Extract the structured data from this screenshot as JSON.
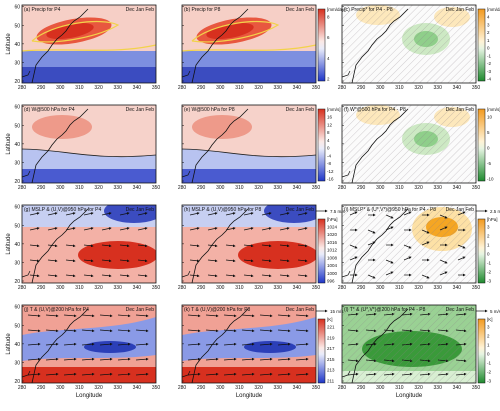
{
  "figure": {
    "season": "Dec Jan Feb",
    "xlabel": "Longitude",
    "ylabel": "Latitude",
    "lon_ticks": [
      "280",
      "290",
      "300",
      "310",
      "320",
      "330",
      "340",
      "350"
    ],
    "lat_ticks": [
      "20",
      "30",
      "40",
      "50",
      "60"
    ],
    "panels": [
      {
        "id": "a",
        "title": "(a) Precip for P4",
        "type": "precip"
      },
      {
        "id": "b",
        "title": "(b) Precip for P8",
        "type": "precip"
      },
      {
        "id": "c",
        "title": "(c) Precip* for P4 - P8",
        "type": "diff_green"
      },
      {
        "id": "d",
        "title": "(d) W@500 hPa for P4",
        "type": "omega"
      },
      {
        "id": "e",
        "title": "(e) W@500 hPa for P8",
        "type": "omega"
      },
      {
        "id": "f",
        "title": "(f) W*@500 hPa for P4 - P8",
        "type": "diff_green"
      },
      {
        "id": "g",
        "title": "(g) MSLP & (U,V)@950 hPa for P4",
        "type": "mslp"
      },
      {
        "id": "h",
        "title": "(h) MSLP & (U,V)@950 hPa for P8",
        "type": "mslp"
      },
      {
        "id": "i",
        "title": "(i) MSLP* & (U*,V*)@950 hPa for P4 - P8",
        "type": "diff_high"
      },
      {
        "id": "j",
        "title": "(j) T & (U,V)@200 hPa for P4",
        "type": "temp"
      },
      {
        "id": "k",
        "title": "(k) T & (U,V)@200 hPa for P8",
        "type": "temp"
      },
      {
        "id": "l",
        "title": "(l) T* & (U*,V*)@200 hPa for P4 - P8",
        "type": "diff_cold"
      }
    ],
    "colorbars": [
      {
        "row": 0,
        "side": "mid",
        "unit": "[mm/day]",
        "ticks": [
          "8",
          "6",
          "4",
          "2"
        ]
      },
      {
        "row": 0,
        "side": "right",
        "unit": "[mm/day]",
        "ticks": [
          "4",
          "3",
          "2",
          "1",
          "0",
          "-1",
          "-2",
          "-3",
          "-4"
        ]
      },
      {
        "row": 1,
        "side": "mid",
        "unit": "[mm/s]",
        "ticks": [
          "16",
          "12",
          "8",
          "4",
          "0",
          "-4",
          "-8",
          "-12",
          "-16"
        ]
      },
      {
        "row": 1,
        "side": "right",
        "unit": "[mm/s]",
        "ticks": [
          "10",
          "5",
          "0",
          "-5",
          "-10"
        ]
      },
      {
        "row": 2,
        "side": "mid",
        "unit": "[hPa]",
        "vec": "7.5 m/s",
        "ticks": [
          "1024",
          "1020",
          "1016",
          "1012",
          "1008",
          "1004",
          "1000",
          "996"
        ]
      },
      {
        "row": 2,
        "side": "right",
        "unit": "[hPa]",
        "vec": "2.5 m/s",
        "ticks": [
          "3",
          "2",
          "1",
          "0",
          "-1",
          "-2",
          "-3"
        ]
      },
      {
        "row": 3,
        "side": "mid",
        "unit": "[K]",
        "vec": "15 m/s",
        "ticks": [
          "221",
          "219",
          "217",
          "215",
          "213",
          "211"
        ]
      },
      {
        "row": 3,
        "side": "right",
        "unit": "[K]",
        "vec": "5 m/s",
        "ticks": [
          "3",
          "2",
          "1",
          "0",
          "-1",
          "-2",
          "-3"
        ]
      }
    ],
    "colors": {
      "red": "#d7301f",
      "blue": "#2b3fb8",
      "orange": "#f5a623",
      "green": "#3a9a3a",
      "yellow": "#f2d24a"
    }
  }
}
